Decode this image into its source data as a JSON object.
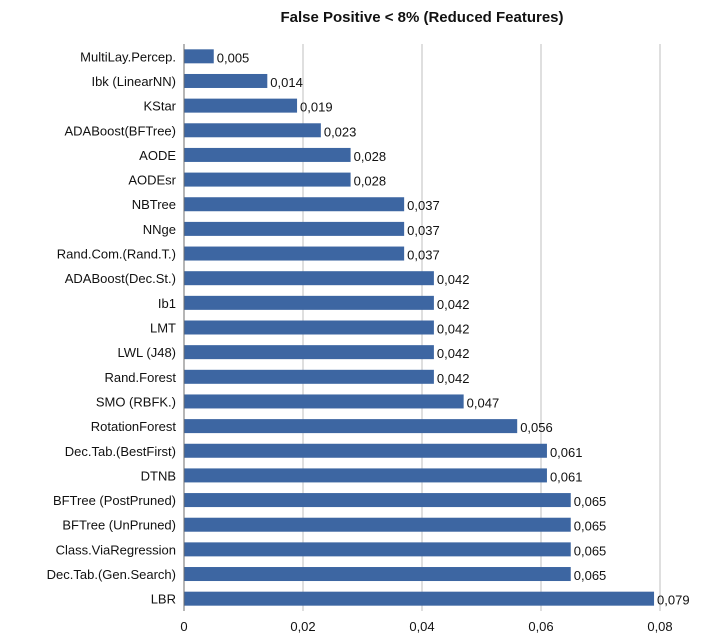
{
  "chart_data": {
    "type": "bar",
    "orientation": "horizontal",
    "title": "False Positive < 8% (Reduced Features)",
    "categories": [
      "MultiLay.Percep.",
      "Ibk (LinearNN)",
      "KStar",
      "ADABoost(BFTree)",
      "AODE",
      "AODEsr",
      "NBTree",
      "NNge",
      "Rand.Com.(Rand.T.)",
      "ADABoost(Dec.St.)",
      "Ib1",
      "LMT",
      "LWL (J48)",
      "Rand.Forest",
      "SMO (RBFK.)",
      "RotationForest",
      "Dec.Tab.(BestFirst)",
      "DTNB",
      "BFTree (PostPruned)",
      "BFTree (UnPruned)",
      "Class.ViaRegression",
      "Dec.Tab.(Gen.Search)",
      "LBR"
    ],
    "values": [
      0.005,
      0.014,
      0.019,
      0.023,
      0.028,
      0.028,
      0.037,
      0.037,
      0.037,
      0.042,
      0.042,
      0.042,
      0.042,
      0.042,
      0.047,
      0.056,
      0.061,
      0.061,
      0.065,
      0.065,
      0.065,
      0.065,
      0.079
    ],
    "value_labels": [
      "0,005",
      "0,014",
      "0,019",
      "0,023",
      "0,028",
      "0,028",
      "0,037",
      "0,037",
      "0,037",
      "0,042",
      "0,042",
      "0,042",
      "0,042",
      "0,042",
      "0,047",
      "0,056",
      "0,061",
      "0,061",
      "0,065",
      "0,065",
      "0,065",
      "0,065",
      "0,079"
    ],
    "xlim": [
      0,
      0.08
    ],
    "xticks": [
      0,
      0.02,
      0.04,
      0.06,
      0.08
    ],
    "xtick_labels": [
      "0",
      "0,02",
      "0,04",
      "0,06",
      "0,08"
    ],
    "grid": true,
    "legend": false,
    "bar_color": "#3d66a2"
  }
}
